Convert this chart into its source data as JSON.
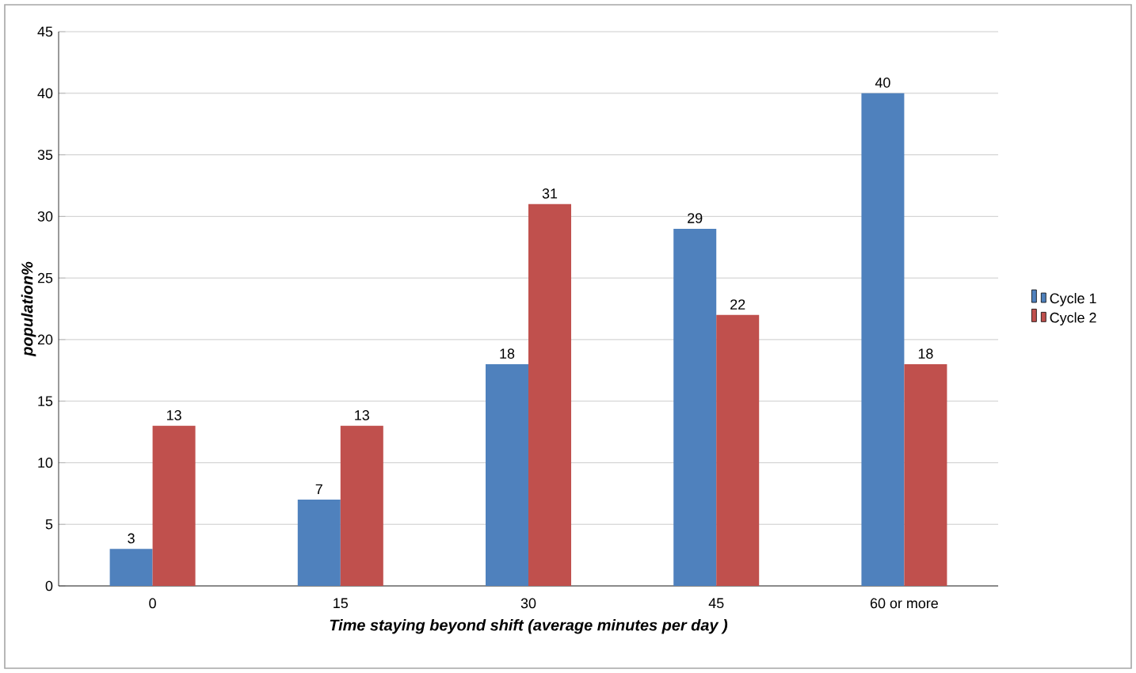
{
  "chart_data": {
    "type": "bar",
    "xlabel": "Time staying beyond shift  (average minutes per day )",
    "ylabel": "population%",
    "categories": [
      "0",
      "15",
      "30",
      "45",
      "60 or more"
    ],
    "series": [
      {
        "name": "Cycle 1",
        "color": "#4f81bd",
        "values": [
          3,
          7,
          18,
          29,
          40
        ]
      },
      {
        "name": "Cycle 2",
        "color": "#c0504d",
        "values": [
          13,
          13,
          31,
          22,
          18
        ]
      }
    ],
    "ylim": [
      0,
      45
    ],
    "yticks": [
      0,
      5,
      10,
      15,
      20,
      25,
      30,
      35,
      40,
      45
    ],
    "grid": "y",
    "legend": "right",
    "data_labels": true
  }
}
